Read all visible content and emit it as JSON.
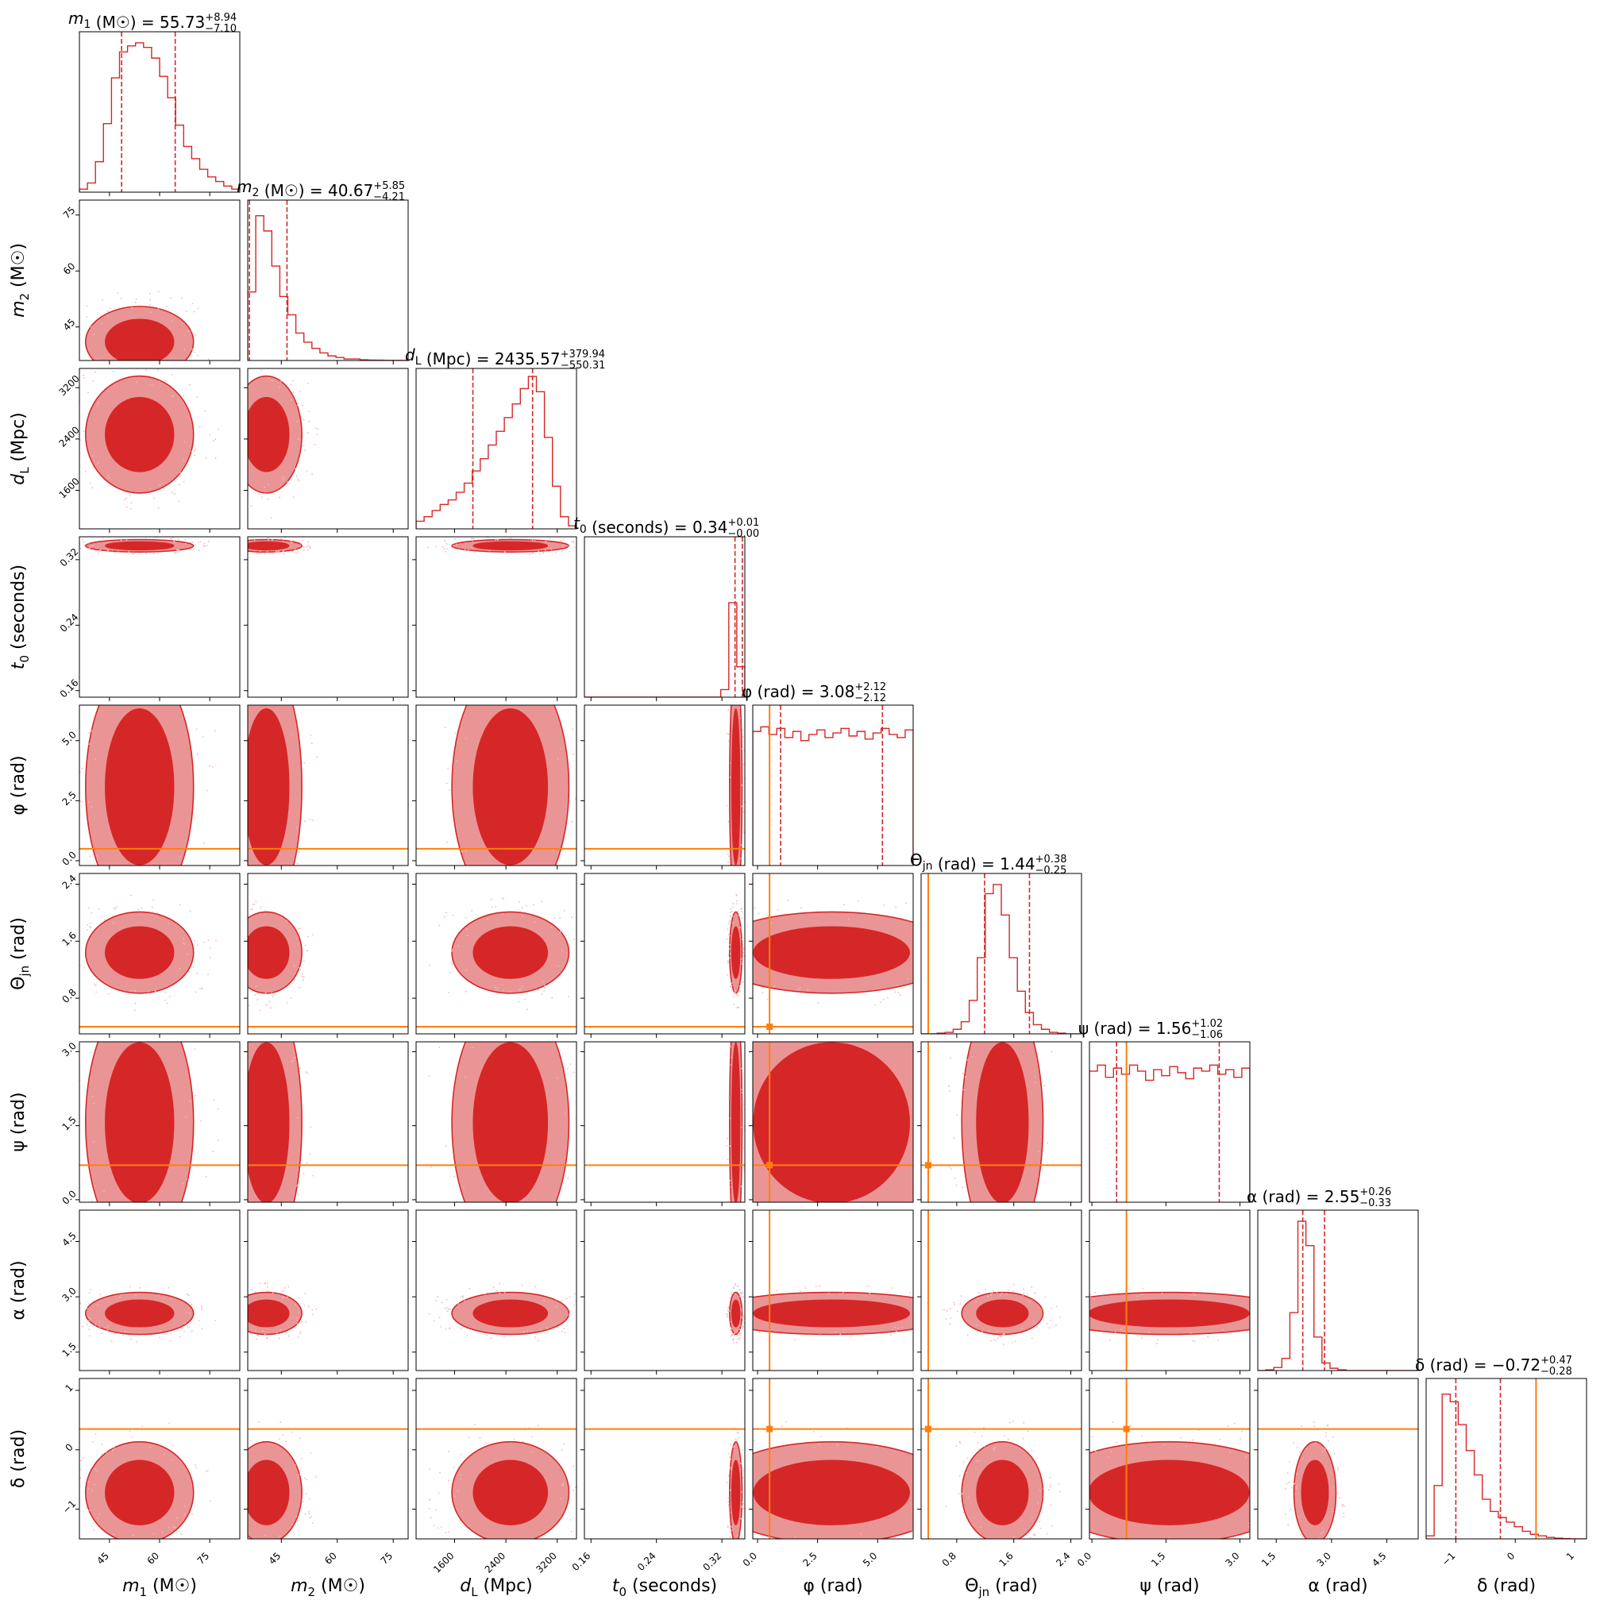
{
  "colors": {
    "posterior": "#d62728",
    "posterior_light": "#ea9595",
    "truth": "#ff7f0e"
  },
  "chart_data": {
    "type": "corner",
    "parameters": [
      {
        "key": "m1",
        "sym": "m",
        "sub": "1",
        "unit": "(M☉)",
        "median": "55.73",
        "plus": "+8.94",
        "minus": "−7.10",
        "range": [
          36,
          84
        ],
        "ticks": [
          45,
          60,
          75
        ],
        "tickLabels": [
          "45",
          "60",
          "75"
        ],
        "q": [
          48.63,
          64.67
        ],
        "truth": null,
        "hist": [
          0.02,
          0.06,
          0.2,
          0.45,
          0.75,
          0.92,
          0.96,
          0.98,
          0.95,
          0.88,
          0.76,
          0.62,
          0.44,
          0.3,
          0.22,
          0.15,
          0.1,
          0.07,
          0.04,
          0.02
        ]
      },
      {
        "key": "m2",
        "sym": "m",
        "sub": "2",
        "unit": "(M☉)",
        "median": "40.67",
        "plus": "+5.85",
        "minus": "−4.21",
        "range": [
          36,
          79
        ],
        "ticks": [
          45,
          60,
          75
        ],
        "tickLabels": [
          "45",
          "60",
          "75"
        ],
        "q": [
          36.46,
          46.52
        ],
        "truth": null,
        "hist": [
          0.45,
          0.95,
          0.85,
          0.62,
          0.42,
          0.3,
          0.18,
          0.12,
          0.08,
          0.05,
          0.03,
          0.02,
          0.01,
          0.01,
          0.005,
          0.003,
          0.002,
          0.001,
          0.001,
          0.001
        ]
      },
      {
        "key": "dL",
        "sym": "d",
        "sub": "L",
        "unit": "(Mpc)",
        "median": "2435.57",
        "plus": "+379.94",
        "minus": "−550.31",
        "range": [
          1000,
          3500
        ],
        "ticks": [
          1600,
          2400,
          3200
        ],
        "tickLabels": [
          "1600",
          "2400",
          "3200"
        ],
        "q": [
          1885.26,
          2815.51
        ],
        "truth": null,
        "hist": [
          0.05,
          0.08,
          0.12,
          0.16,
          0.19,
          0.24,
          0.3,
          0.38,
          0.46,
          0.55,
          0.64,
          0.73,
          0.82,
          0.92,
          1.0,
          0.9,
          0.6,
          0.28,
          0.08,
          0.02
        ]
      },
      {
        "key": "t0",
        "sym": "t",
        "sub": "0",
        "unit": "(seconds)",
        "median": "0.34",
        "plus": "+0.01",
        "minus": "−0.00",
        "range": [
          0.152,
          0.348
        ],
        "ticks": [
          0.16,
          0.24,
          0.32
        ],
        "tickLabels": [
          "0.16",
          "0.24",
          "0.32"
        ],
        "q": [
          0.336,
          0.345
        ],
        "truth": null,
        "hist": [
          0.0,
          0.0,
          0.0,
          0.0,
          0.0,
          0.0,
          0.0,
          0.0,
          0.0,
          0.0,
          0.0,
          0.0,
          0.0,
          0.0,
          0.0,
          0.0,
          0.0,
          0.05,
          0.62,
          0.2
        ]
      },
      {
        "key": "phi",
        "sym": "φ",
        "sub": "",
        "unit": "(rad)",
        "median": "3.08",
        "plus": "+2.12",
        "minus": "−2.12",
        "range": [
          -0.2,
          6.48
        ],
        "ticks": [
          0.0,
          2.5,
          5.0
        ],
        "tickLabels": [
          "0.0",
          "2.5",
          "5.0"
        ],
        "q": [
          0.96,
          5.2
        ],
        "truth": 0.5,
        "hist": [
          0.88,
          0.91,
          0.86,
          0.9,
          0.84,
          0.88,
          0.82,
          0.86,
          0.89,
          0.84,
          0.87,
          0.9,
          0.85,
          0.88,
          0.83,
          0.87,
          0.9,
          0.86,
          0.84,
          0.89
        ]
      },
      {
        "key": "theta",
        "sym": "Θ",
        "sub": "jn",
        "unit": "(rad)",
        "median": "1.44",
        "plus": "+0.38",
        "minus": "−0.25",
        "range": [
          0.3,
          2.55
        ],
        "ticks": [
          0.8,
          1.6,
          2.4
        ],
        "tickLabels": [
          "0.8",
          "1.6",
          "2.4"
        ],
        "q": [
          1.19,
          1.82
        ],
        "truth": 0.4,
        "hist": [
          0.0,
          0.0,
          0.005,
          0.01,
          0.03,
          0.08,
          0.22,
          0.5,
          0.92,
          0.98,
          0.78,
          0.5,
          0.28,
          0.14,
          0.06,
          0.03,
          0.01,
          0.005,
          0.0,
          0.0
        ]
      },
      {
        "key": "psi",
        "sym": "ψ",
        "sub": "",
        "unit": "(rad)",
        "median": "1.56",
        "plus": "+1.02",
        "minus": "−1.06",
        "range": [
          -0.05,
          3.2
        ],
        "ticks": [
          0.0,
          1.5,
          3.0
        ],
        "tickLabels": [
          "0.0",
          "1.5",
          "3.0"
        ],
        "q": [
          0.5,
          2.58
        ],
        "truth": 0.7,
        "hist": [
          0.86,
          0.9,
          0.82,
          0.88,
          0.84,
          0.9,
          0.86,
          0.8,
          0.87,
          0.83,
          0.89,
          0.85,
          0.81,
          0.88,
          0.86,
          0.9,
          0.84,
          0.87,
          0.82,
          0.88
        ]
      },
      {
        "key": "alpha",
        "sym": "α",
        "sub": "",
        "unit": "(rad)",
        "median": "2.55",
        "plus": "+0.26",
        "minus": "−0.33",
        "range": [
          1.0,
          5.35
        ],
        "ticks": [
          1.5,
          3.0,
          4.5
        ],
        "tickLabels": [
          "1.5",
          "3.0",
          "4.5"
        ],
        "q": [
          2.22,
          2.81
        ],
        "truth": null,
        "hist": [
          0.0,
          0.005,
          0.02,
          0.08,
          0.38,
          0.98,
          0.82,
          0.22,
          0.05,
          0.015,
          0.005,
          0.0,
          0.0,
          0.0,
          0.0,
          0.0,
          0.0,
          0.0,
          0.0,
          0.0
        ]
      },
      {
        "key": "delta",
        "sym": "δ",
        "sub": "",
        "unit": "(rad)",
        "median": "−0.72",
        "plus": "+0.47",
        "minus": "−0.28",
        "range": [
          -1.5,
          1.2
        ],
        "ticks": [
          -1,
          0,
          1
        ],
        "tickLabels": [
          "−1",
          "0",
          "1"
        ],
        "q": [
          -1.0,
          -0.25
        ],
        "truth": 0.35,
        "hist": [
          0.02,
          0.35,
          0.95,
          0.9,
          0.75,
          0.58,
          0.42,
          0.26,
          0.18,
          0.14,
          0.11,
          0.08,
          0.05,
          0.03,
          0.02,
          0.01,
          0.005,
          0.002,
          0.0,
          0.0
        ]
      }
    ],
    "posterior_centers": {
      "m1": 54,
      "m2": 41,
      "dL": 2470,
      "t0": 0.337,
      "phi": 3.08,
      "theta": 1.44,
      "psi": 1.56,
      "alpha": 2.55,
      "delta": -0.72
    },
    "posterior_widths": {
      "m1": 8.5,
      "m2": 5.0,
      "dL": 480,
      "t0": 0.004,
      "phi": 2.7,
      "theta": 0.3,
      "psi": 1.35,
      "alpha": 0.3,
      "delta": 0.45
    },
    "hist_color": "#d62728",
    "quantile_lines": "dashed",
    "truth_markers": true
  }
}
